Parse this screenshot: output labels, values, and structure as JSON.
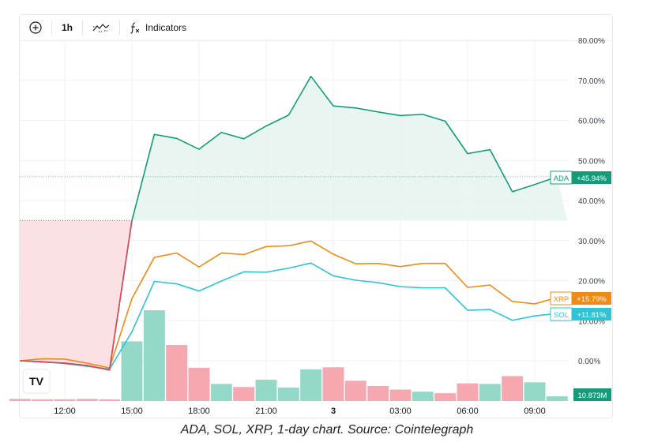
{
  "toolbar": {
    "add_icon": "plus-circle-icon",
    "interval": "1h",
    "chart_style_icon": "compare-icon",
    "indicators_icon": "fx-icon",
    "indicators_label": "Indicators"
  },
  "caption": "ADA, SOL, XRP, 1-day chart. Source: Cointelegraph",
  "logo": "TV",
  "colors": {
    "ada": "#149c7a",
    "ada_fill": "#e5f4ee",
    "sol": "#2ec4d6",
    "xrp": "#f18a13",
    "red_line": "#e0465a",
    "red_fill": "#fbe1e3",
    "vol_up": "#94d8c8",
    "vol_down": "#f5a8b0",
    "grid": "#f0f1f3",
    "axis_text": "#3b3f4a"
  },
  "chart_data": {
    "type": "line",
    "title": "",
    "xlabel": "",
    "ylabel": "",
    "ylim": [
      -10,
      80
    ],
    "y_ticks": [
      "80.00%",
      "70.00%",
      "60.00%",
      "50.00%",
      "40.00%",
      "30.00%",
      "20.00%",
      "10.00%",
      "0.00%"
    ],
    "y_tick_values": [
      80,
      70,
      60,
      50,
      40,
      30,
      20,
      10,
      0
    ],
    "x_ticks": [
      "12:00",
      "15:00",
      "18:00",
      "21:00",
      "3",
      "03:00",
      "06:00",
      "09:00"
    ],
    "x_tick_hours": [
      12,
      15,
      18,
      21,
      24,
      27,
      30,
      33
    ],
    "x_range": [
      10,
      35
    ],
    "baseline_pct": 35,
    "series": [
      {
        "name": "ADA",
        "badge": "+45.94%",
        "x": [
          10,
          11,
          12,
          13,
          14,
          15,
          16,
          17,
          18,
          19,
          20,
          21,
          22,
          23,
          24,
          25,
          26,
          27,
          28,
          29,
          30,
          31,
          32,
          33,
          34
        ],
        "values": [
          0,
          -0.3,
          -0.6,
          -1.2,
          -2.3,
          35,
          56.5,
          55.5,
          52.8,
          57,
          55.4,
          58.6,
          61.3,
          71,
          63.6,
          63.1,
          62.1,
          61.2,
          61.5,
          59.8,
          51.7,
          52.7,
          42.2,
          44,
          45.94
        ]
      },
      {
        "name": "XRP",
        "badge": "+15.79%",
        "x": [
          10,
          11,
          12,
          13,
          14,
          15,
          16,
          17,
          18,
          19,
          20,
          21,
          22,
          23,
          24,
          25,
          26,
          27,
          28,
          29,
          30,
          31,
          32,
          33,
          34
        ],
        "values": [
          0,
          0.5,
          0.4,
          -0.6,
          -1.8,
          15.5,
          25.8,
          26.9,
          23.4,
          26.9,
          26.5,
          28.5,
          28.7,
          29.9,
          26.6,
          24.2,
          24.3,
          23.5,
          24.3,
          24.3,
          18.3,
          18.9,
          14.8,
          14.2,
          15.79
        ]
      },
      {
        "name": "SOL",
        "badge": "+11.81%",
        "x": [
          10,
          11,
          12,
          13,
          14,
          15,
          16,
          17,
          18,
          19,
          20,
          21,
          22,
          23,
          24,
          25,
          26,
          27,
          28,
          29,
          30,
          31,
          32,
          33,
          34
        ],
        "values": [
          0,
          -0.2,
          -0.7,
          -1.4,
          -2.1,
          7.2,
          19.8,
          19.2,
          17.4,
          19.9,
          22.2,
          22.1,
          23.1,
          24.4,
          21.2,
          20.1,
          19.5,
          18.5,
          18.2,
          18.2,
          12.6,
          12.8,
          10.1,
          11.2,
          11.81
        ]
      }
    ],
    "volume": {
      "label": "10.873M",
      "x": [
        10,
        11,
        12,
        13,
        14,
        15,
        16,
        17,
        18,
        19,
        20,
        21,
        22,
        23,
        24,
        25,
        26,
        27,
        28,
        29,
        30,
        31,
        32,
        33,
        34
      ],
      "values": [
        0.4,
        0.3,
        0.3,
        0.4,
        0.3,
        11.5,
        17.5,
        10.8,
        6.4,
        3.3,
        2.7,
        4.1,
        2.6,
        6.1,
        6.5,
        3.9,
        2.9,
        2.2,
        1.8,
        1.5,
        3.4,
        3.3,
        4.8,
        3.6,
        0.9
      ],
      "up": [
        false,
        false,
        false,
        false,
        false,
        true,
        true,
        false,
        false,
        true,
        false,
        true,
        true,
        true,
        false,
        false,
        false,
        false,
        true,
        false,
        false,
        true,
        false,
        true,
        true
      ]
    }
  }
}
